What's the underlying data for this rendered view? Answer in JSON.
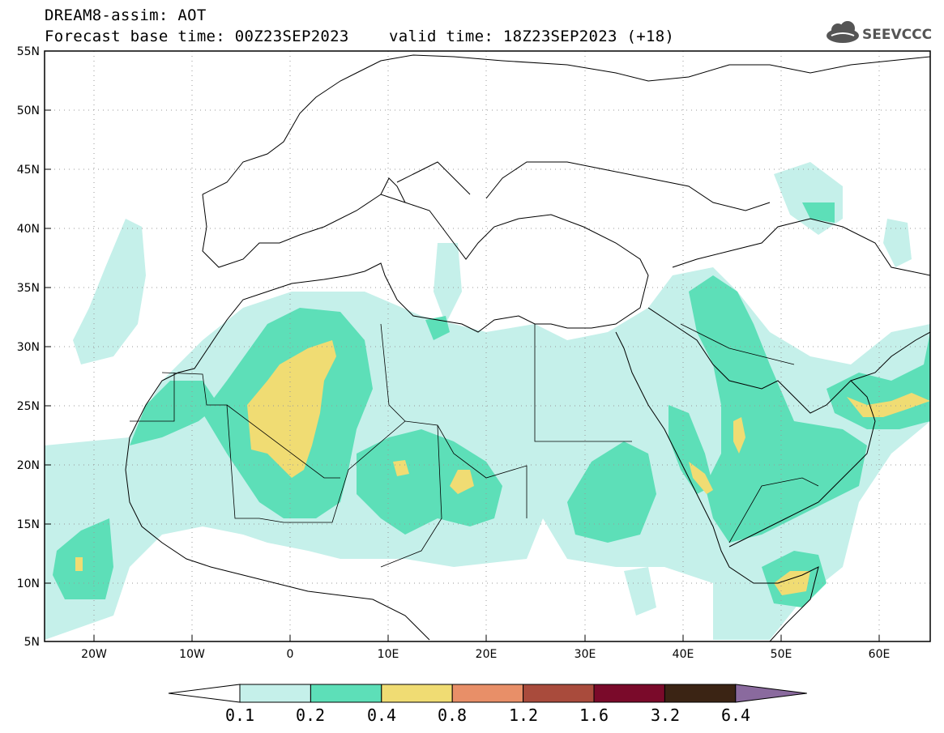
{
  "header": {
    "title_line1": "DREAM8-assim: AOT",
    "title_line2": "Forecast base time: 00Z23SEP2023",
    "valid_time": "valid time: 18Z23SEP2023 (+18)",
    "logo_text": "SEEVCCC"
  },
  "map": {
    "lat_labels": [
      "55N",
      "50N",
      "45N",
      "40N",
      "35N",
      "30N",
      "25N",
      "20N",
      "15N",
      "10N",
      "5N"
    ],
    "lon_labels": [
      "20W",
      "10W",
      "0",
      "10E",
      "20E",
      "30E",
      "40E",
      "50E",
      "60E"
    ],
    "lon_range": [
      -25,
      65
    ],
    "lat_range": [
      5,
      55
    ]
  },
  "colorbar": {
    "labels": [
      "0.1",
      "0.2",
      "0.4",
      "0.8",
      "1.2",
      "1.6",
      "3.2",
      "6.4"
    ],
    "colors": [
      "#ffffff",
      "#c5f0ea",
      "#5ddfb8",
      "#f0dc73",
      "#e88f68",
      "#a94b3c",
      "#7a0a2a",
      "#3b2414",
      "#8a6a9e"
    ]
  },
  "chart_data": {
    "type": "heatmap",
    "variable": "AOT",
    "levels": [
      0.1,
      0.2,
      0.4,
      0.8,
      1.2,
      1.6,
      3.2,
      6.4
    ]
  }
}
